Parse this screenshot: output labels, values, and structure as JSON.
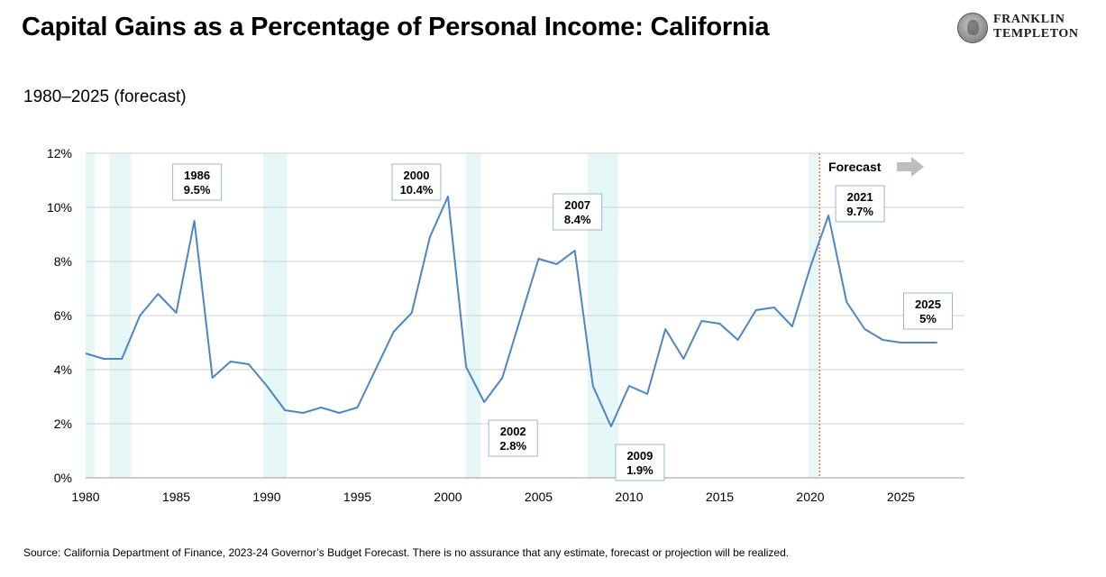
{
  "header": {
    "title": "Capital Gains as a Percentage of Personal Income: California",
    "subtitle": "1980–2025 (forecast)",
    "logo_line1": "FRANKLIN",
    "logo_line2": "TEMPLETON"
  },
  "footer": {
    "source": "Source: California Department of Finance, 2023-24 Governor’s Budget Forecast. There is no assurance that any estimate, forecast or projection will be realized."
  },
  "colors": {
    "line": "#4f86c0",
    "recession": "#e6f7f8",
    "grid": "#d0d0d0",
    "forecast_line": "#d0502a",
    "arrow": "#bdbdbd",
    "label_border": "#9ab6d6"
  },
  "chart_data": {
    "type": "line",
    "title": "",
    "xlabel": "",
    "ylabel": "",
    "xlim": [
      1980,
      2028
    ],
    "ylim": [
      0,
      12
    ],
    "x_ticks": [
      1980,
      1985,
      1990,
      1995,
      2000,
      2005,
      2010,
      2015,
      2020,
      2025
    ],
    "y_ticks": [
      {
        "value": 0,
        "label": "0%"
      },
      {
        "value": 2,
        "label": "2%"
      },
      {
        "value": 4,
        "label": "4%"
      },
      {
        "value": 6,
        "label": "6%"
      },
      {
        "value": 8,
        "label": "8%"
      },
      {
        "value": 10,
        "label": "10%"
      },
      {
        "value": 12,
        "label": "12%"
      }
    ],
    "grid": "horizontal",
    "series": [
      {
        "x": [
          1980,
          1981,
          1982,
          1983,
          1984,
          1985,
          1986,
          1987,
          1988,
          1989,
          1990,
          1991,
          1992,
          1993,
          1994,
          1995,
          1996,
          1997,
          1998,
          1999,
          2000,
          2001,
          2002,
          2003,
          2004,
          2005,
          2006,
          2007,
          2008,
          2009,
          2010,
          2011,
          2012,
          2013,
          2014,
          2015,
          2016,
          2017,
          2018,
          2019,
          2020,
          2021,
          2022,
          2023,
          2024,
          2025,
          2026,
          2027
        ],
        "values": [
          4.6,
          4.4,
          4.4,
          6.0,
          6.8,
          6.1,
          9.5,
          3.7,
          4.3,
          4.2,
          3.4,
          2.5,
          2.4,
          2.6,
          2.4,
          2.6,
          4.0,
          5.4,
          6.1,
          8.9,
          10.4,
          4.1,
          2.8,
          3.7,
          5.9,
          8.1,
          7.9,
          8.4,
          3.4,
          1.9,
          3.4,
          3.1,
          5.5,
          4.4,
          5.8,
          5.7,
          5.1,
          6.2,
          6.3,
          5.6,
          7.8,
          9.7,
          6.5,
          5.5,
          5.1,
          5.0,
          5.0,
          5.0
        ]
      }
    ],
    "recessions": [
      [
        1980.0,
        1980.5
      ],
      [
        1981.3,
        1982.5
      ],
      [
        1989.8,
        1991.1
      ],
      [
        2001.0,
        2001.8
      ],
      [
        2007.7,
        2009.4
      ],
      [
        2019.9,
        2020.4
      ]
    ],
    "forecast_start": 2020.5,
    "forecast_label": "Forecast",
    "annotations": [
      {
        "year_label": "1986",
        "value_label": "9.5%",
        "x": 1986,
        "y": 9.5,
        "position": "above"
      },
      {
        "year_label": "2000",
        "value_label": "10.4%",
        "x": 2000,
        "y": 10.4,
        "position": "above-left"
      },
      {
        "year_label": "2002",
        "value_label": "2.8%",
        "x": 2002,
        "y": 2.8,
        "position": "below"
      },
      {
        "year_label": "2007",
        "value_label": "8.4%",
        "x": 2007,
        "y": 8.4,
        "position": "above"
      },
      {
        "year_label": "2009",
        "value_label": "1.9%",
        "x": 2009,
        "y": 1.9,
        "position": "below"
      },
      {
        "year_label": "2021",
        "value_label": "9.7%",
        "x": 2021,
        "y": 9.7,
        "position": "right"
      },
      {
        "year_label": "2025",
        "value_label": "5%",
        "x": 2025,
        "y": 5.0,
        "position": "above-right"
      }
    ]
  }
}
